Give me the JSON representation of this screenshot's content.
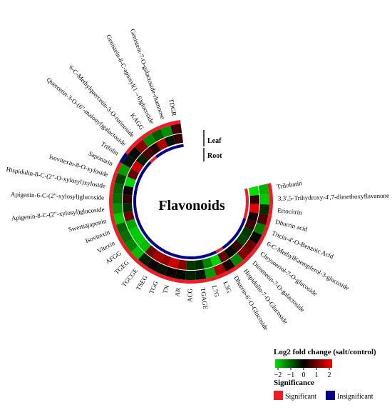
{
  "chart_data": {
    "type": "heatmap",
    "title": "Flavonoids",
    "rows": [
      "Leaf",
      "Root"
    ],
    "columns": [
      "Trilobatin",
      "3,3',5-Trihydroxy-4',7-dimethoxyflavanone",
      "Eriocitrin",
      "Dhurrin acid",
      "Tricin-4'-O-Benzoic Acid",
      "6-C-MethylKaempferol-3-glucoside",
      "Chrysoeriol-7-O-glucoside",
      "Diosmetin-7-O-galactoside",
      "Hispidulin-7-O-Glucoside",
      "Dhurrin-6'-O-Glucoside",
      "L3G",
      "L7G",
      "TGAGE",
      "ACG",
      "AR",
      "TN",
      "TGG",
      "TSEG",
      "TGCGE",
      "TGEG",
      "AFGG",
      "Vitexin",
      "Isovitexin",
      "Swertiajaponin",
      "Apigenin-8-C-(2\"-xylosyl)glucoside",
      "Apigenin-6-C-(2\"-xylosyl)glucoside",
      "Hispidulin-8-C-(2\"-O-xylosyl)xyloside",
      "Isovitexin-8-O-xyloside",
      "Saponarin",
      "Trifolin",
      "Quercetin-3-O-(6\"-malonyl)galactoside",
      "6-C-Methylquercetin-3-O-rutinoside",
      "KAGG",
      "Genistein-8-C-apiosyl(1→6)glucoside",
      "Genistein-7-O-galactoside-rhamnose",
      "TDGR"
    ],
    "leaf_log2fc": [
      -1.6,
      -1.8,
      -0.4,
      0.6,
      -1.1,
      -0.1,
      0.8,
      1.0,
      -1.2,
      0.2,
      1.3,
      -1.4,
      -0.2,
      -0.3,
      -0.1,
      0.1,
      -0.2,
      0.1,
      -0.3,
      -1.7,
      -1.2,
      -1.0,
      -0.9,
      -1.8,
      -1.3,
      -1.0,
      -0.9,
      -0.6,
      -1.4,
      -0.2,
      -0.1,
      1.1,
      -1.2,
      -0.8,
      -1.3,
      0.5
    ],
    "root_log2fc": [
      -2.0,
      0.4,
      1.8,
      0.2,
      0.5,
      -0.5,
      -0.6,
      0.4,
      -0.1,
      0.8,
      -1.9,
      -1.2,
      -0.4,
      -0.5,
      1.1,
      1.6,
      1.2,
      1.3,
      0.9,
      -1.7,
      -1.8,
      -1.8,
      -1.5,
      0.9,
      -0.4,
      0.4,
      0.1,
      -1.9,
      0.8,
      1.6,
      -0.3,
      0.6,
      0.3,
      1.4,
      -0.2,
      0.4
    ],
    "leaf_significant": [
      true,
      true,
      true,
      true,
      true,
      true,
      true,
      true,
      true,
      true,
      true,
      true,
      true,
      true,
      true,
      true,
      true,
      true,
      true,
      true,
      true,
      true,
      true,
      true,
      true,
      true,
      true,
      true,
      true,
      false,
      true,
      true,
      true,
      true,
      true,
      true
    ],
    "root_significant": [
      true,
      true,
      true,
      true,
      false,
      false,
      false,
      false,
      false,
      true,
      false,
      false,
      false,
      false,
      false,
      false,
      false,
      false,
      false,
      false,
      false,
      false,
      false,
      false,
      false,
      false,
      false,
      false,
      false,
      false,
      false,
      true,
      false,
      false,
      false,
      false
    ],
    "colorbar": {
      "title": "Log2 fold change (salt/control)",
      "ticks": [
        "−2",
        "−1",
        "0",
        "1",
        "2"
      ],
      "range": [
        -2,
        2
      ],
      "colors": {
        "low": "#00e000",
        "mid": "#000000",
        "high": "#ff0000"
      }
    },
    "significance_legend": {
      "title": "Significance",
      "items": [
        {
          "label": "Significant",
          "color": "#ee1c25"
        },
        {
          "label": "Insignificant",
          "color": "#00008b"
        }
      ]
    }
  }
}
